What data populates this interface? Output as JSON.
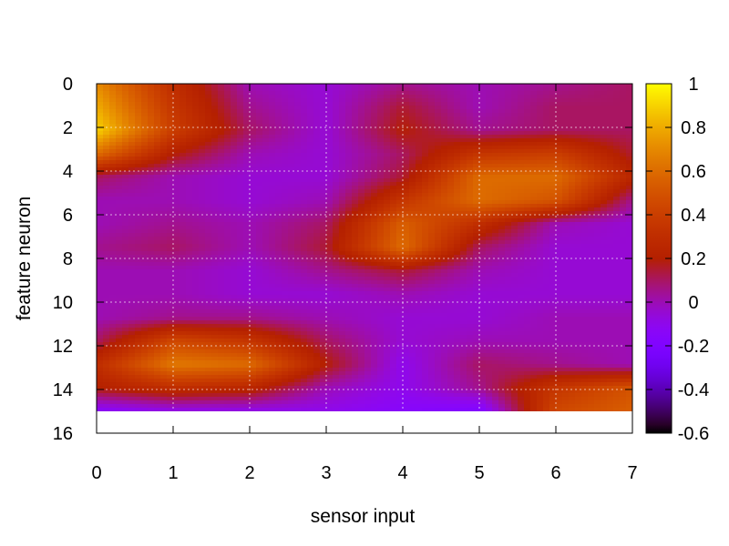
{
  "chart_data": {
    "type": "heatmap",
    "title": "",
    "xlabel": "sensor input",
    "ylabel": "feature neuron",
    "xlim": [
      0,
      7
    ],
    "ylim": [
      0,
      16
    ],
    "y_inverted": true,
    "x_ticks": [
      "0",
      "1",
      "2",
      "3",
      "4",
      "5",
      "6",
      "7"
    ],
    "y_ticks": [
      "0",
      "2",
      "4",
      "6",
      "8",
      "10",
      "12",
      "14",
      "16"
    ],
    "data_rows": 15,
    "interpolation": "smooth",
    "grid": true,
    "colorbar": {
      "range": [
        -0.6,
        1
      ],
      "ticks": [
        "1",
        "0.8",
        "0.6",
        "0.4",
        "0.2",
        "0",
        "-0.2",
        "-0.4",
        "-0.6"
      ],
      "palette": "gnuplot (black-purple-red-orange-yellow)"
    },
    "values": [
      [
        0.7,
        0.3,
        0.0,
        -0.05,
        0.05,
        0.0,
        0.05,
        0.1
      ],
      [
        0.8,
        0.35,
        0.05,
        -0.05,
        0.15,
        0.0,
        0.1,
        0.1
      ],
      [
        0.9,
        0.4,
        0.1,
        -0.05,
        0.2,
        0.05,
        0.1,
        0.1
      ],
      [
        0.6,
        0.2,
        0.0,
        -0.05,
        0.1,
        0.35,
        0.4,
        0.15
      ],
      [
        0.1,
        0.0,
        -0.05,
        -0.05,
        0.15,
        0.6,
        0.6,
        0.25
      ],
      [
        0.0,
        0.0,
        -0.05,
        0.0,
        0.35,
        0.6,
        0.5,
        0.05
      ],
      [
        0.0,
        0.05,
        0.0,
        0.1,
        0.55,
        0.3,
        0.0,
        -0.05
      ],
      [
        0.05,
        0.1,
        0.0,
        0.15,
        0.6,
        0.1,
        -0.05,
        -0.05
      ],
      [
        0.0,
        0.0,
        -0.05,
        0.05,
        0.15,
        0.0,
        -0.05,
        -0.05
      ],
      [
        0.0,
        0.0,
        -0.05,
        -0.05,
        0.0,
        -0.05,
        -0.05,
        -0.05
      ],
      [
        0.0,
        0.05,
        0.05,
        0.0,
        -0.05,
        -0.05,
        0.0,
        0.0
      ],
      [
        0.1,
        0.45,
        0.35,
        0.1,
        -0.05,
        0.0,
        0.0,
        0.0
      ],
      [
        0.3,
        0.65,
        0.6,
        0.2,
        -0.1,
        0.1,
        0.05,
        0.0
      ],
      [
        0.2,
        0.3,
        0.25,
        0.0,
        -0.1,
        0.05,
        0.35,
        0.5
      ],
      [
        -0.15,
        -0.1,
        -0.1,
        -0.1,
        -0.15,
        -0.2,
        0.45,
        0.55
      ]
    ]
  }
}
